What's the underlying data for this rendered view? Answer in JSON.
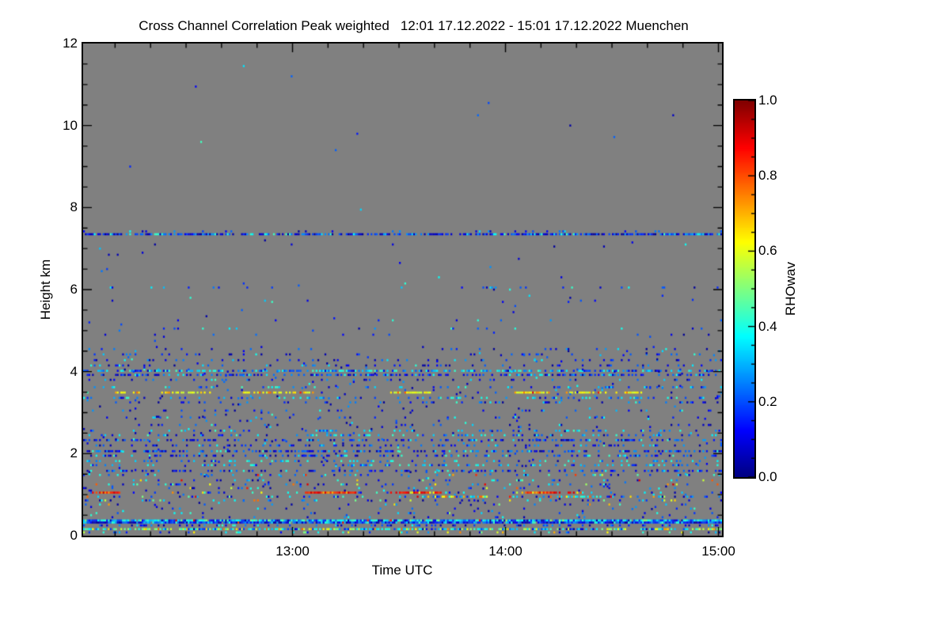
{
  "chart_data": {
    "type": "heatmap",
    "title": "Cross Channel Correlation Peak weighted",
    "period": "12:01 17.12.2022 - 15:01 17.12.2022 Muenchen",
    "xlabel": "Time UTC",
    "ylabel": "Height km",
    "colorbar_label": "RHOwav",
    "x_start": "12:01",
    "x_end": "15:01",
    "x_total_minutes": 180,
    "x_major_ticks": [
      {
        "label": "13:00",
        "minute": 59
      },
      {
        "label": "14:00",
        "minute": 119
      },
      {
        "label": "15:00",
        "minute": 179
      }
    ],
    "x_minor_step_minutes": 10,
    "y_range_km": [
      0,
      12
    ],
    "y_major_ticks": [
      "0",
      "2",
      "4",
      "6",
      "8",
      "10",
      "12"
    ],
    "y_minor_step_km": 0.5,
    "colorbar": {
      "range": [
        0.0,
        1.0
      ],
      "major_ticks": [
        "0.0",
        "0.2",
        "0.4",
        "0.6",
        "0.8",
        "1.0"
      ],
      "minor_step": 0.05,
      "colormap": "jet"
    },
    "grid": "off",
    "legend": "none",
    "background_color": "#808080",
    "frame_color": "#000000",
    "value_palettes": {
      "darkblue": [
        0.02,
        0.13
      ],
      "blue": [
        0.14,
        0.28
      ],
      "cyan": [
        0.3,
        0.44
      ],
      "green": [
        0.45,
        0.55
      ],
      "yellow": [
        0.56,
        0.66
      ],
      "orange": [
        0.67,
        0.79
      ],
      "red": [
        0.8,
        0.93
      ]
    },
    "mixes": {
      "cold": {
        "darkblue": 4,
        "blue": 4,
        "cyan": 1.5
      },
      "coldcyan": {
        "darkblue": 1,
        "blue": 3,
        "cyan": 4
      },
      "varied": {
        "darkblue": 2,
        "blue": 3,
        "cyan": 2.5,
        "green": 0.7,
        "yellow": 0.8,
        "orange": 0.6,
        "red": 0.3
      },
      "warm": {
        "yellow": 6,
        "orange": 2.5,
        "red": 1
      },
      "yellowline": {
        "yellow": 8,
        "orange": 1.5
      },
      "redline": {
        "red": 7,
        "orange": 1.5,
        "yellow": 0.8
      },
      "cyanline": {
        "cyan": 5,
        "blue": 3,
        "darkblue": 1.2,
        "green": 0.5,
        "red": 0.1
      },
      "blueline": {
        "blue": 5,
        "darkblue": 4,
        "cyan": 1.5,
        "red": 0.12
      },
      "warmcyan": {
        "cyan": 4,
        "orange": 2,
        "yellow": 1.5,
        "blue": 1
      },
      "bottom": {
        "cyan": 3.5,
        "green": 2,
        "yellow": 1.5,
        "blue": 2,
        "orange": 0.7,
        "darkblue": 1
      }
    },
    "bands": [
      {
        "km": 7.42,
        "density": 0.1,
        "mix": "cold"
      },
      {
        "km": 7.35,
        "density": 0.75,
        "mix": "cold"
      },
      {
        "km": 6.05,
        "density": 0.05,
        "mix": "cold"
      },
      {
        "km": 5.73,
        "density": 0.012,
        "mix": "cold"
      },
      {
        "km": 5.25,
        "density": 0.02,
        "mix": "cold"
      },
      {
        "km": 5.05,
        "density": 0.05,
        "mix": "coldcyan"
      },
      {
        "km": 4.9,
        "density": 0.025,
        "mix": "cold"
      },
      {
        "km": 4.55,
        "density": 0.06,
        "mix": "cold"
      },
      {
        "km": 4.42,
        "density": 0.1,
        "mix": "cold"
      },
      {
        "km": 4.28,
        "density": 0.12,
        "mix": "cold"
      },
      {
        "km": 4.15,
        "density": 0.16,
        "mix": "cold"
      },
      {
        "km": 4.02,
        "density": 0.52,
        "mix": "coldcyan"
      },
      {
        "km": 3.92,
        "density": 0.42,
        "mix": "cold"
      },
      {
        "km": 3.8,
        "density": 0.12,
        "mix": "cold"
      },
      {
        "km": 3.62,
        "density": 0.18,
        "mix": "coldcyan"
      },
      {
        "km": 3.49,
        "density": 0.07,
        "mix": "cold",
        "segments": [
          {
            "t0": 0.05,
            "t1": 0.09,
            "density": 0.7,
            "mix": "yellowline"
          },
          {
            "t0": 0.12,
            "t1": 0.2,
            "density": 0.7,
            "mix": "yellowline"
          },
          {
            "t0": 0.25,
            "t1": 0.36,
            "density": 0.65,
            "mix": "warm"
          },
          {
            "t0": 0.48,
            "t1": 0.545,
            "density": 0.75,
            "mix": "yellowline"
          },
          {
            "t0": 0.67,
            "t1": 0.73,
            "density": 0.7,
            "mix": "warm"
          },
          {
            "t0": 0.755,
            "t1": 0.835,
            "density": 0.75,
            "mix": "warm"
          },
          {
            "t0": 0.845,
            "t1": 0.88,
            "density": 0.6,
            "mix": "yellowline"
          }
        ]
      },
      {
        "km": 3.36,
        "density": 0.24,
        "mix": "coldcyan"
      },
      {
        "km": 3.25,
        "density": 0.15,
        "mix": "cold"
      },
      {
        "km": 3.05,
        "density": 0.11,
        "mix": "cold"
      },
      {
        "km": 2.88,
        "density": 0.1,
        "mix": "cold"
      },
      {
        "km": 2.7,
        "density": 0.08,
        "mix": "cold"
      },
      {
        "km": 2.56,
        "density": 0.2,
        "mix": "coldcyan"
      },
      {
        "km": 2.45,
        "density": 0.26,
        "mix": "coldcyan"
      },
      {
        "km": 2.33,
        "density": 0.34,
        "mix": "cold"
      },
      {
        "km": 2.2,
        "density": 0.22,
        "mix": "cold"
      },
      {
        "km": 2.06,
        "density": 0.48,
        "mix": "cold"
      },
      {
        "km": 1.95,
        "density": 0.28,
        "mix": "cold"
      },
      {
        "km": 1.82,
        "density": 0.22,
        "mix": "coldcyan"
      },
      {
        "km": 1.72,
        "density": 0.26,
        "mix": "coldcyan"
      },
      {
        "km": 1.58,
        "density": 0.28,
        "mix": "cold"
      },
      {
        "km": 1.48,
        "density": 0.13,
        "mix": "varied"
      },
      {
        "km": 1.35,
        "density": 0.11,
        "mix": "varied"
      },
      {
        "km": 1.25,
        "density": 0.15,
        "mix": "varied"
      },
      {
        "km": 1.16,
        "density": 0.11,
        "mix": "varied"
      },
      {
        "km": 1.05,
        "density": 0.12,
        "mix": "varied",
        "segments": [
          {
            "t0": 0.012,
            "t1": 0.058,
            "density": 0.85,
            "mix": "redline"
          },
          {
            "t0": 0.345,
            "t1": 0.425,
            "density": 0.88,
            "mix": "redline"
          },
          {
            "t0": 0.478,
            "t1": 0.56,
            "density": 0.85,
            "mix": "redline"
          },
          {
            "t0": 0.69,
            "t1": 0.745,
            "density": 0.8,
            "mix": "redline"
          },
          {
            "t0": 0.757,
            "t1": 0.778,
            "density": 0.8,
            "mix": "redline"
          }
        ]
      },
      {
        "km": 0.95,
        "density": 0.18,
        "mix": "varied",
        "segments": [
          {
            "t0": 0.53,
            "t1": 0.635,
            "density": 0.8,
            "mix": "warmcyan"
          },
          {
            "t0": 0.73,
            "t1": 0.805,
            "density": 0.7,
            "mix": "warmcyan"
          }
        ]
      },
      {
        "km": 0.86,
        "density": 0.16,
        "mix": "varied"
      },
      {
        "km": 0.76,
        "density": 0.08,
        "mix": "varied"
      },
      {
        "km": 0.66,
        "density": 0.07,
        "mix": "cold"
      },
      {
        "km": 0.55,
        "density": 0.06,
        "mix": "varied"
      },
      {
        "km": 0.45,
        "density": 0.05,
        "mix": "cold"
      },
      {
        "km": 0.37,
        "density": 0.96,
        "mix": "cyanline"
      },
      {
        "km": 0.32,
        "density": 0.96,
        "mix": "blueline"
      },
      {
        "km": 0.25,
        "density": 0.28,
        "mix": "cold"
      },
      {
        "km": 0.16,
        "density": 0.68,
        "mix": "bottom"
      },
      {
        "km": 0.08,
        "density": 0.16,
        "mix": "bottom"
      }
    ],
    "speckle_fields": [
      {
        "km0": 0.45,
        "km1": 4.6,
        "density": 0.012,
        "mix": "cold"
      },
      {
        "km0": 4.65,
        "km1": 7.25,
        "density": 0.003,
        "mix": "cold"
      },
      {
        "km0": 7.5,
        "km1": 11.9,
        "density": 0.0003,
        "mix": "cold"
      }
    ],
    "isolated_points": [
      {
        "t": 0.325,
        "km": 11.2
      },
      {
        "t": 0.394,
        "km": 9.4
      },
      {
        "t": 0.83,
        "km": 9.72
      }
    ],
    "seed": 7
  }
}
